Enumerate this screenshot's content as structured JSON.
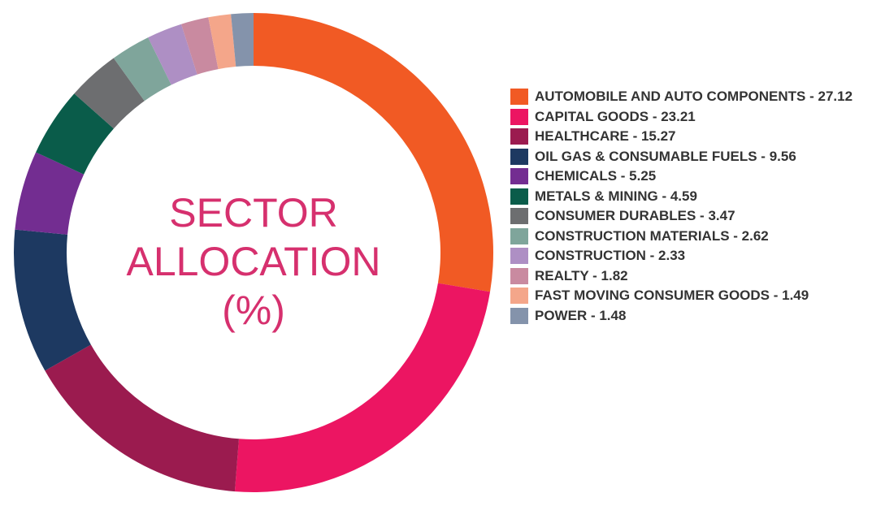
{
  "chart_data": {
    "type": "pie",
    "title": "SECTOR ALLOCATION (%)",
    "categories": [
      "AUTOMOBILE AND AUTO COMPONENTS - 27.12",
      "CAPITAL GOODS - 23.21",
      "HEALTHCARE - 15.27",
      "OIL GAS & CONSUMABLE FUELS - 9.56",
      "CHEMICALS - 5.25",
      "METALS & MINING - 4.59",
      "CONSUMER DURABLES - 3.47",
      "CONSTRUCTION MATERIALS - 2.62",
      "CONSTRUCTION - 2.33",
      "REALTY - 1.82",
      "FAST MOVING CONSUMER GOODS - 1.49",
      "POWER - 1.48"
    ],
    "values": [
      27.12,
      23.21,
      15.27,
      9.56,
      5.25,
      4.59,
      3.47,
      2.62,
      2.33,
      1.82,
      1.49,
      1.48
    ],
    "colors": [
      "#f15a24",
      "#ec1562",
      "#9b1b4f",
      "#1d3961",
      "#732d91",
      "#0a5c4a",
      "#6d6e70",
      "#7fa59b",
      "#ae8fc4",
      "#c98aa0",
      "#f4a68a",
      "#8493ab"
    ]
  }
}
